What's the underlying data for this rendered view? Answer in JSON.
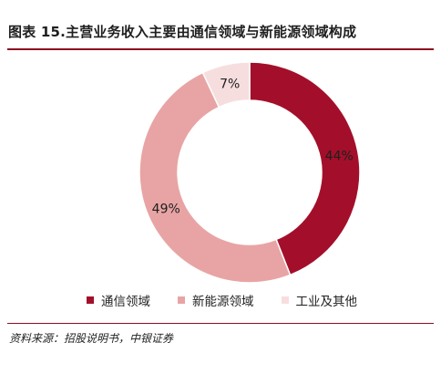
{
  "chart_data": {
    "type": "pie",
    "title": "图表 15.主营业务收入主要由通信领域与新能源领域构成",
    "categories": [
      "通信领域",
      "新能源领域",
      "工业及其他"
    ],
    "values": [
      44,
      49,
      7
    ],
    "labels": [
      "44%",
      "49%",
      "7%"
    ],
    "colors": [
      "#a30f2a",
      "#e8a4a4",
      "#f7dede"
    ],
    "legend_position": "bottom"
  },
  "source": "资料来源：招股说明书，中银证券"
}
